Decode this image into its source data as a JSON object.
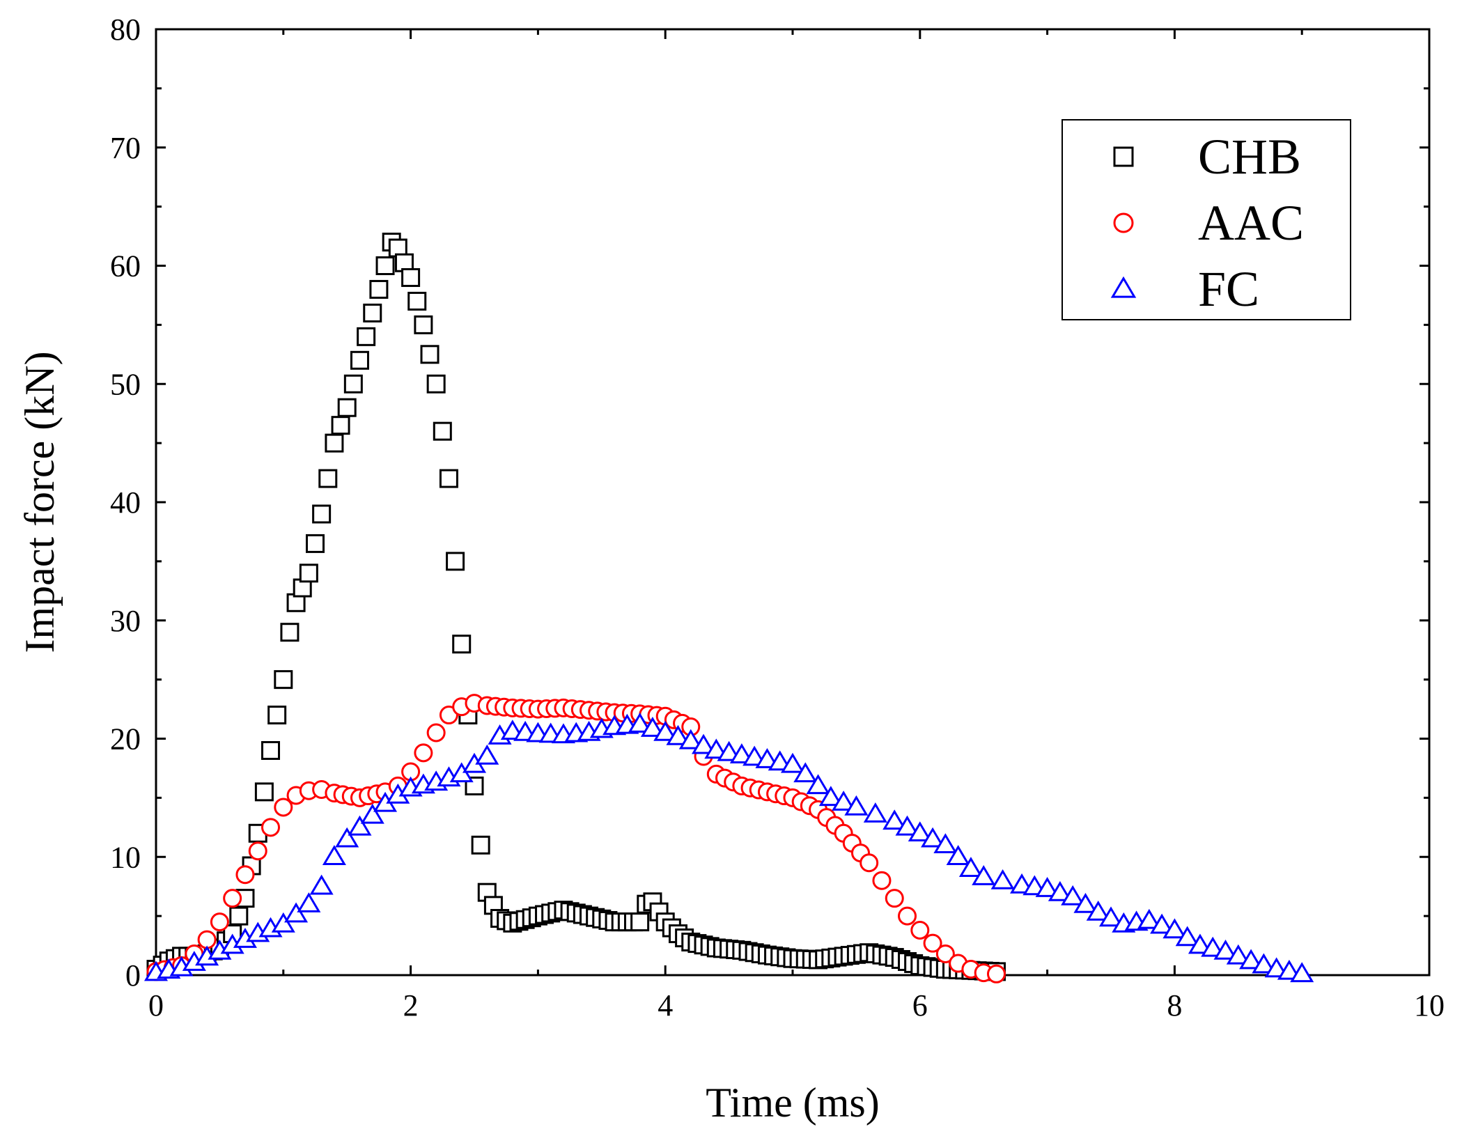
{
  "chart_data": {
    "type": "scatter",
    "title": "",
    "xlabel": "Time (ms)",
    "ylabel": "Impact force (kN)",
    "xlim": [
      0,
      10
    ],
    "ylim": [
      0,
      80
    ],
    "x_ticks": [
      0,
      2,
      4,
      6,
      8,
      10
    ],
    "y_ticks": [
      0,
      10,
      20,
      30,
      40,
      50,
      60,
      70,
      80
    ],
    "x_tick_labels": [
      "0",
      "2",
      "4",
      "6",
      "8",
      "10"
    ],
    "y_tick_labels": [
      "0",
      "10",
      "20",
      "30",
      "40",
      "50",
      "60",
      "70",
      "80"
    ],
    "grid": false,
    "legend_position": "top-right",
    "series": [
      {
        "name": "CHB",
        "marker": "square",
        "color": "#000000",
        "points": [
          [
            0.0,
            0.5
          ],
          [
            0.1,
            1.2
          ],
          [
            0.2,
            1.6
          ],
          [
            0.3,
            1.6
          ],
          [
            0.4,
            1.8
          ],
          [
            0.5,
            2.3
          ],
          [
            0.6,
            3.5
          ],
          [
            0.7,
            6.5
          ],
          [
            0.8,
            12.0
          ],
          [
            0.9,
            19.0
          ],
          [
            1.0,
            25.0
          ],
          [
            1.05,
            29.0
          ],
          [
            1.1,
            31.5
          ],
          [
            1.2,
            34.0
          ],
          [
            1.3,
            39.0
          ],
          [
            1.4,
            45.0
          ],
          [
            1.5,
            48.0
          ],
          [
            1.6,
            52.0
          ],
          [
            1.7,
            56.0
          ],
          [
            1.8,
            60.0
          ],
          [
            1.85,
            62.0
          ],
          [
            1.9,
            61.5
          ],
          [
            2.0,
            59.0
          ],
          [
            2.1,
            55.0
          ],
          [
            2.2,
            50.0
          ],
          [
            2.3,
            42.0
          ],
          [
            2.35,
            35.0
          ],
          [
            2.4,
            28.0
          ],
          [
            2.45,
            22.0
          ],
          [
            2.5,
            16.0
          ],
          [
            2.55,
            11.0
          ],
          [
            2.6,
            7.0
          ],
          [
            2.7,
            4.8
          ],
          [
            2.8,
            4.4
          ],
          [
            3.0,
            5.0
          ],
          [
            3.2,
            5.5
          ],
          [
            3.4,
            5.0
          ],
          [
            3.6,
            4.5
          ],
          [
            3.8,
            4.5
          ],
          [
            3.85,
            6.0
          ],
          [
            3.9,
            6.2
          ],
          [
            4.0,
            4.5
          ],
          [
            4.1,
            3.5
          ],
          [
            4.2,
            2.8
          ],
          [
            4.4,
            2.3
          ],
          [
            4.6,
            2.1
          ],
          [
            4.8,
            1.7
          ],
          [
            5.0,
            1.4
          ],
          [
            5.2,
            1.3
          ],
          [
            5.4,
            1.6
          ],
          [
            5.6,
            1.9
          ],
          [
            5.8,
            1.5
          ],
          [
            6.0,
            0.8
          ],
          [
            6.2,
            0.5
          ],
          [
            6.4,
            0.4
          ],
          [
            6.6,
            0.3
          ]
        ]
      },
      {
        "name": "AAC",
        "marker": "circle",
        "color": "#ff0000",
        "points": [
          [
            0.0,
            0.3
          ],
          [
            0.2,
            0.8
          ],
          [
            0.3,
            1.8
          ],
          [
            0.4,
            3.0
          ],
          [
            0.5,
            4.5
          ],
          [
            0.6,
            6.5
          ],
          [
            0.7,
            8.5
          ],
          [
            0.8,
            10.5
          ],
          [
            0.9,
            12.5
          ],
          [
            1.0,
            14.2
          ],
          [
            1.1,
            15.2
          ],
          [
            1.2,
            15.6
          ],
          [
            1.3,
            15.7
          ],
          [
            1.4,
            15.4
          ],
          [
            1.6,
            15.0
          ],
          [
            1.8,
            15.5
          ],
          [
            1.9,
            16.0
          ],
          [
            2.0,
            17.2
          ],
          [
            2.1,
            18.8
          ],
          [
            2.2,
            20.5
          ],
          [
            2.3,
            22.0
          ],
          [
            2.4,
            22.7
          ],
          [
            2.5,
            23.0
          ],
          [
            2.6,
            22.8
          ],
          [
            2.8,
            22.6
          ],
          [
            3.0,
            22.5
          ],
          [
            3.2,
            22.6
          ],
          [
            3.4,
            22.4
          ],
          [
            3.6,
            22.2
          ],
          [
            3.8,
            22.1
          ],
          [
            4.0,
            21.9
          ],
          [
            4.2,
            21.0
          ],
          [
            4.3,
            18.5
          ],
          [
            4.4,
            17.0
          ],
          [
            4.6,
            16.0
          ],
          [
            4.8,
            15.5
          ],
          [
            5.0,
            15.0
          ],
          [
            5.2,
            14.0
          ],
          [
            5.4,
            12.0
          ],
          [
            5.6,
            9.5
          ],
          [
            5.7,
            8.0
          ],
          [
            5.8,
            6.5
          ],
          [
            5.9,
            5.0
          ],
          [
            6.0,
            3.8
          ],
          [
            6.1,
            2.7
          ],
          [
            6.2,
            1.8
          ],
          [
            6.3,
            1.0
          ],
          [
            6.4,
            0.5
          ],
          [
            6.5,
            0.2
          ],
          [
            6.6,
            0.1
          ]
        ]
      },
      {
        "name": "FC",
        "marker": "triangle",
        "color": "#0000ff",
        "points": [
          [
            0.0,
            0.2
          ],
          [
            0.2,
            0.6
          ],
          [
            0.4,
            1.5
          ],
          [
            0.6,
            2.5
          ],
          [
            0.8,
            3.5
          ],
          [
            1.0,
            4.3
          ],
          [
            1.2,
            6.0
          ],
          [
            1.3,
            7.5
          ],
          [
            1.4,
            10.0
          ],
          [
            1.5,
            11.5
          ],
          [
            1.6,
            12.5
          ],
          [
            1.7,
            13.5
          ],
          [
            1.8,
            14.5
          ],
          [
            1.9,
            15.2
          ],
          [
            2.0,
            15.8
          ],
          [
            2.2,
            16.3
          ],
          [
            2.4,
            17.0
          ],
          [
            2.5,
            17.8
          ],
          [
            2.6,
            18.5
          ],
          [
            2.7,
            20.2
          ],
          [
            2.8,
            20.6
          ],
          [
            3.0,
            20.4
          ],
          [
            3.2,
            20.3
          ],
          [
            3.4,
            20.5
          ],
          [
            3.6,
            21.0
          ],
          [
            3.8,
            21.2
          ],
          [
            4.0,
            20.5
          ],
          [
            4.2,
            19.8
          ],
          [
            4.4,
            19.0
          ],
          [
            4.6,
            18.6
          ],
          [
            4.8,
            18.2
          ],
          [
            5.0,
            17.8
          ],
          [
            5.1,
            17.0
          ],
          [
            5.3,
            15.0
          ],
          [
            5.5,
            14.2
          ],
          [
            5.8,
            13.0
          ],
          [
            6.0,
            12.0
          ],
          [
            6.2,
            11.0
          ],
          [
            6.3,
            10.0
          ],
          [
            6.4,
            9.0
          ],
          [
            6.5,
            8.3
          ],
          [
            6.8,
            7.6
          ],
          [
            7.0,
            7.3
          ],
          [
            7.2,
            6.6
          ],
          [
            7.4,
            5.3
          ],
          [
            7.6,
            4.3
          ],
          [
            7.8,
            4.6
          ],
          [
            8.0,
            3.8
          ],
          [
            8.2,
            2.5
          ],
          [
            8.4,
            2.0
          ],
          [
            8.6,
            1.2
          ],
          [
            8.8,
            0.5
          ],
          [
            9.0,
            0.1
          ]
        ]
      }
    ]
  }
}
